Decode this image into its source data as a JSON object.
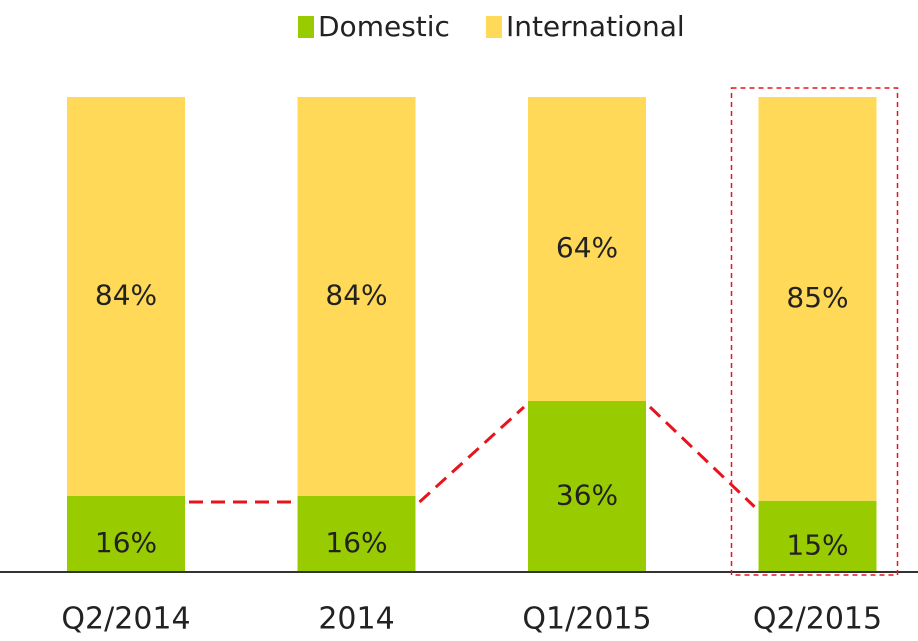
{
  "chart_data": {
    "type": "stacked_bar",
    "categories": [
      "Q2/2014",
      "2014",
      "Q1/2015",
      "Q2/2015"
    ],
    "series": [
      {
        "name": "Domestic",
        "color": "#99cc00",
        "values": [
          16,
          16,
          36,
          15
        ],
        "value_labels": [
          "16%",
          "16%",
          "36%",
          "15%"
        ]
      },
      {
        "name": "International",
        "color": "#ffd957",
        "values": [
          84,
          84,
          64,
          85
        ],
        "value_labels": [
          "84%",
          "84%",
          "64%",
          "85%"
        ]
      }
    ],
    "ylim": [
      0,
      100
    ]
  }
}
